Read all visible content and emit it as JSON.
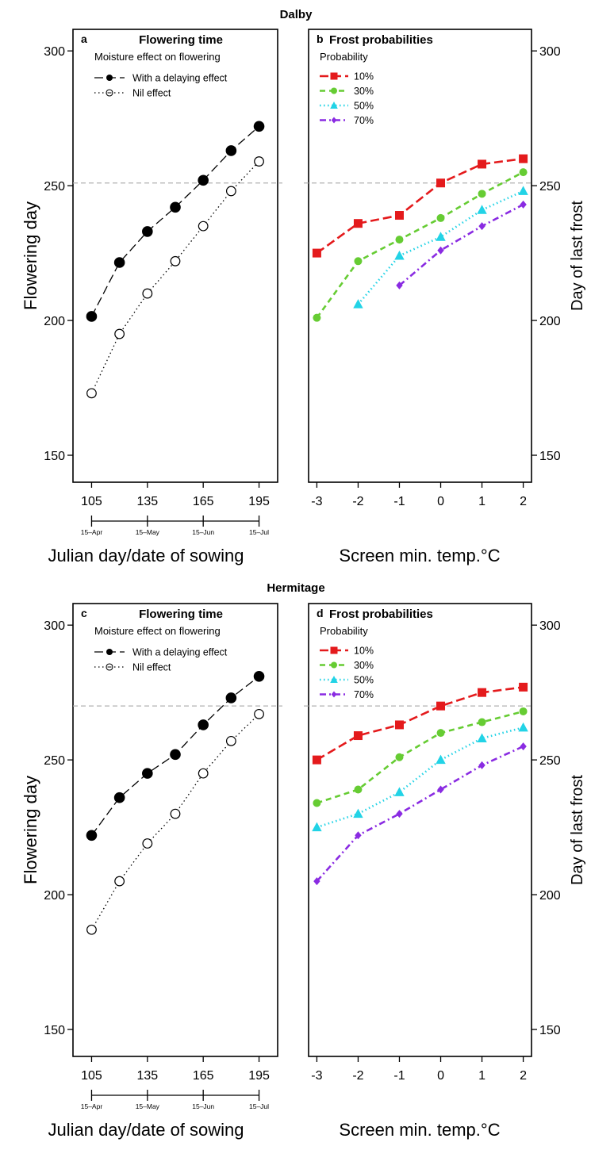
{
  "figure": {
    "colors": {
      "p10": "#e41a1c",
      "p30": "#66cc33",
      "p50": "#22d3e6",
      "p70": "#8a2be2",
      "axis": "#000000",
      "reference_line": "#b0b0b0"
    }
  },
  "chart_data": [
    {
      "site": "Dalby",
      "panel": "a",
      "type": "line",
      "title": "Flowering time",
      "legend_title": "Moisture effect on flowering",
      "legend_position": "top-left",
      "ylabel": "Flowering day",
      "xlabel": "Julian day/date of sowing",
      "ylim": [
        140,
        308
      ],
      "yticks": [
        150,
        200,
        250,
        300
      ],
      "xlim": [
        95,
        205
      ],
      "xticks": [
        105,
        135,
        165,
        195
      ],
      "date_labels": [
        {
          "x": 105,
          "label": "15–Apr"
        },
        {
          "x": 135,
          "label": "15–May"
        },
        {
          "x": 165,
          "label": "15–Jun"
        },
        {
          "x": 195,
          "label": "15–Jul"
        }
      ],
      "reference_line": 251,
      "series": [
        {
          "name": "With a delaying effect",
          "marker": "filled-circle",
          "line": "longdash",
          "x": [
            105,
            120,
            135,
            150,
            165,
            180,
            195
          ],
          "y": [
            201.5,
            221.5,
            233,
            242,
            252,
            263,
            272
          ]
        },
        {
          "name": "Nil effect",
          "marker": "open-circle",
          "line": "dotted",
          "x": [
            105,
            120,
            135,
            150,
            165,
            180,
            195
          ],
          "y": [
            173,
            195,
            210,
            222,
            235,
            248,
            259
          ]
        }
      ]
    },
    {
      "site": "Dalby",
      "panel": "b",
      "type": "line",
      "title": "Frost probabilities",
      "legend_title": "Probability",
      "legend_position": "top-left",
      "ylabel": "Day of last frost",
      "xlabel": "Screen min. temp.°C",
      "ylim": [
        140,
        308
      ],
      "yticks": [
        150,
        200,
        250,
        300
      ],
      "xlim": [
        -3.2,
        2.2
      ],
      "xticks": [
        -3,
        -2,
        -1,
        0,
        1,
        2
      ],
      "reference_line": 251,
      "series": [
        {
          "name": "10%",
          "color_key": "p10",
          "marker": "square",
          "line": "longdash",
          "x": [
            -3,
            -2,
            -1,
            0,
            1,
            2
          ],
          "y": [
            225,
            236,
            239,
            251,
            258,
            260
          ]
        },
        {
          "name": "30%",
          "color_key": "p30",
          "marker": "circle",
          "line": "dashed",
          "x": [
            -3,
            -2,
            -1,
            0,
            1,
            2
          ],
          "y": [
            201,
            222,
            230,
            238,
            247,
            255
          ]
        },
        {
          "name": "50%",
          "color_key": "p50",
          "marker": "triangle",
          "line": "dotted",
          "x": [
            -2,
            -1,
            0,
            1,
            2
          ],
          "y": [
            206,
            224,
            231,
            241,
            248
          ]
        },
        {
          "name": "70%",
          "color_key": "p70",
          "marker": "diamond",
          "line": "dotdash",
          "x": [
            -1,
            0,
            1,
            2
          ],
          "y": [
            213,
            226,
            235,
            243
          ]
        }
      ]
    },
    {
      "site": "Hermitage",
      "panel": "c",
      "type": "line",
      "title": "Flowering time",
      "legend_title": "Moisture effect on flowering",
      "legend_position": "top-left",
      "ylabel": "Flowering day",
      "xlabel": "Julian day/date of sowing",
      "ylim": [
        140,
        308
      ],
      "yticks": [
        150,
        200,
        250,
        300
      ],
      "xlim": [
        95,
        205
      ],
      "xticks": [
        105,
        135,
        165,
        195
      ],
      "date_labels": [
        {
          "x": 105,
          "label": "15–Apr"
        },
        {
          "x": 135,
          "label": "15–May"
        },
        {
          "x": 165,
          "label": "15–Jun"
        },
        {
          "x": 195,
          "label": "15–Jul"
        }
      ],
      "reference_line": 270,
      "series": [
        {
          "name": "With a delaying effect",
          "marker": "filled-circle",
          "line": "longdash",
          "x": [
            105,
            120,
            135,
            150,
            165,
            180,
            195
          ],
          "y": [
            222,
            236,
            245,
            252,
            263,
            273,
            281
          ]
        },
        {
          "name": "Nil effect",
          "marker": "open-circle",
          "line": "dotted",
          "x": [
            105,
            120,
            135,
            150,
            165,
            180,
            195
          ],
          "y": [
            187,
            205,
            219,
            230,
            245,
            257,
            267
          ]
        }
      ]
    },
    {
      "site": "Hermitage",
      "panel": "d",
      "type": "line",
      "title": "Frost probabilities",
      "legend_title": "Probability",
      "legend_position": "top-left",
      "ylabel": "Day of last frost",
      "xlabel": "Screen min. temp.°C",
      "ylim": [
        140,
        308
      ],
      "yticks": [
        150,
        200,
        250,
        300
      ],
      "xlim": [
        -3.2,
        2.2
      ],
      "xticks": [
        -3,
        -2,
        -1,
        0,
        1,
        2
      ],
      "reference_line": 270,
      "series": [
        {
          "name": "10%",
          "color_key": "p10",
          "marker": "square",
          "line": "longdash",
          "x": [
            -3,
            -2,
            -1,
            0,
            1,
            2
          ],
          "y": [
            250,
            259,
            263,
            270,
            275,
            277
          ]
        },
        {
          "name": "30%",
          "color_key": "p30",
          "marker": "circle",
          "line": "dashed",
          "x": [
            -3,
            -2,
            -1,
            0,
            1,
            2
          ],
          "y": [
            234,
            239,
            251,
            260,
            264,
            268
          ]
        },
        {
          "name": "50%",
          "color_key": "p50",
          "marker": "triangle",
          "line": "dotted",
          "x": [
            -3,
            -2,
            -1,
            0,
            1,
            2
          ],
          "y": [
            225,
            230,
            238,
            250,
            258,
            262
          ]
        },
        {
          "name": "70%",
          "color_key": "p70",
          "marker": "diamond",
          "line": "dotdash",
          "x": [
            -3,
            -2,
            -1,
            0,
            1,
            2
          ],
          "y": [
            205,
            222,
            230,
            239,
            248,
            255
          ]
        }
      ]
    }
  ]
}
